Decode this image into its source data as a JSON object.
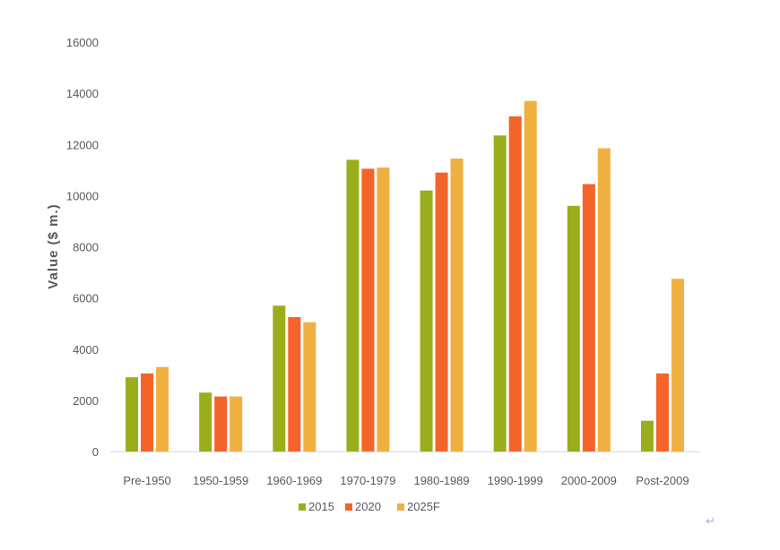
{
  "chart_data": {
    "type": "bar",
    "ylabel": "Value ($ m.)",
    "xlabel": "",
    "ylim": [
      0,
      16000
    ],
    "yticks": [
      0,
      2000,
      4000,
      6000,
      8000,
      10000,
      12000,
      14000,
      16000
    ],
    "grid": false,
    "legend_position": "bottom",
    "categories": [
      "Pre-1950",
      "1950-1959",
      "1960-1969",
      "1970-1979",
      "1980-1989",
      "1990-1999",
      "2000-2009",
      "Post-2009"
    ],
    "series": [
      {
        "name": "2015",
        "color": "#9aae1b",
        "values": [
          2900,
          2300,
          5700,
          11400,
          10200,
          12350,
          9600,
          1200
        ]
      },
      {
        "name": "2020",
        "color": "#f4632a",
        "values": [
          3050,
          2150,
          5250,
          11050,
          10900,
          13100,
          10450,
          3050
        ]
      },
      {
        "name": "2025F",
        "color": "#f0b040",
        "values": [
          3300,
          2150,
          5050,
          11100,
          11450,
          13700,
          11850,
          6750
        ]
      }
    ]
  },
  "return_mark": "↵"
}
